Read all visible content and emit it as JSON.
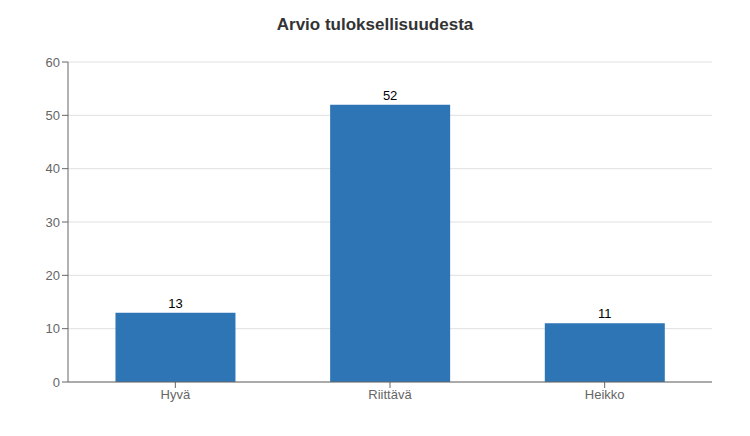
{
  "chart_data": {
    "type": "bar",
    "title": "Arvio tuloksellisuudesta",
    "categories": [
      "Hyvä",
      "Riittävä",
      "Heikko"
    ],
    "values": [
      13,
      52,
      11
    ],
    "color": "#2e75b6",
    "ylim": [
      0,
      60
    ],
    "yticks": [
      0,
      10,
      20,
      30,
      40,
      50,
      60
    ],
    "grid": true,
    "data_labels": true
  }
}
